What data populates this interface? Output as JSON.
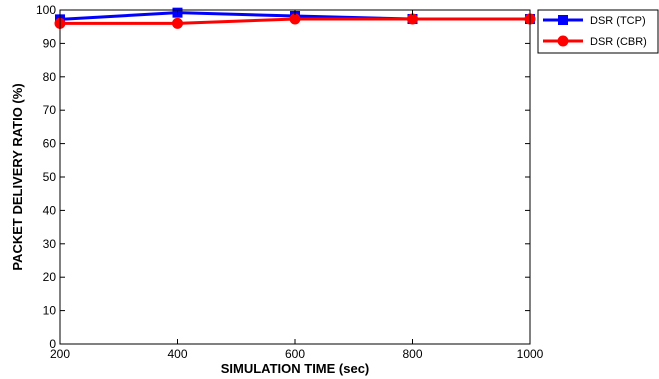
{
  "chart_data": {
    "type": "line",
    "title": "",
    "xlabel": "SIMULATION TIME (sec)",
    "ylabel": "PACKET DELIVERY RATIO (%)",
    "x": [
      200,
      400,
      600,
      800,
      1000
    ],
    "xlim": [
      200,
      1000
    ],
    "ylim": [
      0,
      100
    ],
    "xticks": [
      200,
      400,
      600,
      800,
      1000
    ],
    "yticks": [
      0,
      10,
      20,
      30,
      40,
      50,
      60,
      70,
      80,
      90,
      100
    ],
    "grid": false,
    "legend_position": "top-right, outside plot",
    "series": [
      {
        "name": "DSR (TCP)",
        "values": [
          97.2,
          99.2,
          98.2,
          97.3,
          97.3
        ],
        "color": "#0000ff",
        "marker": "square"
      },
      {
        "name": "DSR (CBR)",
        "values": [
          96.0,
          96.0,
          97.3,
          97.3,
          97.3
        ],
        "color": "#ff0000",
        "marker": "circle"
      }
    ]
  }
}
